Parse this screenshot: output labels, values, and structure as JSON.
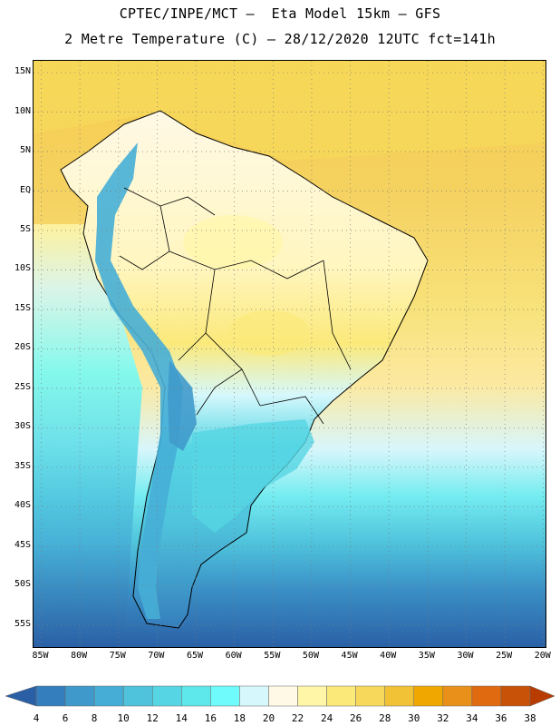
{
  "header": {
    "line1": "CPTEC/INPE/MCT –  Eta Model 15km – GFS",
    "line2": "2 Metre Temperature (C) – 28/12/2020 12UTC fct=141h"
  },
  "map": {
    "lat_labels": [
      "15N",
      "10N",
      "5N",
      "EQ",
      "5S",
      "10S",
      "15S",
      "20S",
      "25S",
      "30S",
      "35S",
      "40S",
      "45S",
      "50S",
      "55S"
    ],
    "lon_labels": [
      "85W",
      "80W",
      "75W",
      "70W",
      "65W",
      "60W",
      "55W",
      "50W",
      "45W",
      "40W",
      "35W",
      "30W",
      "25W",
      "20W"
    ],
    "extent": {
      "lon_min": -86,
      "lon_max": -19.5,
      "lat_max": 16.5,
      "lat_min": -58
    }
  },
  "colorbar": {
    "labels": [
      "4",
      "6",
      "8",
      "10",
      "12",
      "14",
      "16",
      "18",
      "20",
      "22",
      "24",
      "26",
      "28",
      "30",
      "32",
      "34",
      "36",
      "38"
    ],
    "colors": [
      "#2a5fa5",
      "#357ebd",
      "#3f9acb",
      "#46aed6",
      "#4fc3dc",
      "#56d6e4",
      "#5ee8ec",
      "#6ffbfb",
      "#d6f8fc",
      "#fff9e6",
      "#fff6a8",
      "#fbe97a",
      "#f7d85a",
      "#f1c236",
      "#f0a800",
      "#e8901a",
      "#e06a10",
      "#c85208",
      "#b83c00"
    ]
  }
}
